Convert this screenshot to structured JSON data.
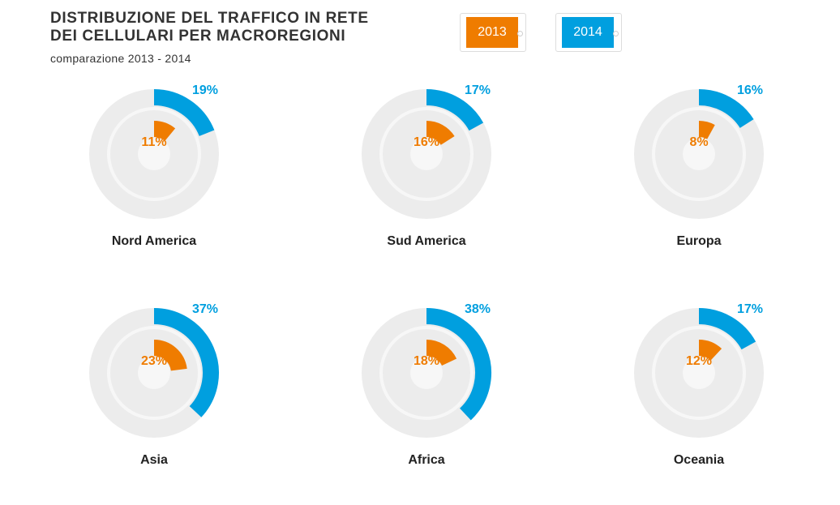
{
  "header": {
    "title_line1": "DISTRIBUZIONE DEL TRAFFICO IN RETE",
    "title_line2": "DEI CELLULARI PER MACROREGIONI",
    "subtitle": "comparazione 2013 - 2014"
  },
  "legend": [
    {
      "label": "2013",
      "color": "#ef7c00"
    },
    {
      "label": "2014",
      "color": "#009fdf"
    }
  ],
  "colors": {
    "y2013": "#ef7c00",
    "y2014": "#009fdf",
    "track": "#ececec",
    "gap": "#f7f7f7"
  },
  "chart_data": {
    "type": "radial-bar",
    "title": "DISTRIBUZIONE DEL TRAFFICO IN RETE DEI CELLULARI PER MACROREGIONI",
    "subtitle": "comparazione 2013 - 2014",
    "unit": "%",
    "series_names": [
      "2013",
      "2014"
    ],
    "regions": [
      {
        "name": "Nord America",
        "v2013": 11,
        "v2014": 19,
        "l2013": "11%",
        "l2014": "19%"
      },
      {
        "name": "Sud America",
        "v2013": 16,
        "v2014": 17,
        "l2013": "16%",
        "l2014": "17%"
      },
      {
        "name": "Europa",
        "v2013": 8,
        "v2014": 16,
        "l2013": "8%",
        "l2014": "16%"
      },
      {
        "name": "Asia",
        "v2013": 23,
        "v2014": 37,
        "l2013": "23%",
        "l2014": "37%"
      },
      {
        "name": "Africa",
        "v2013": 18,
        "v2014": 38,
        "l2013": "18%",
        "l2014": "38%"
      },
      {
        "name": "Oceania",
        "v2013": 12,
        "v2014": 17,
        "l2013": "12%",
        "l2014": "17%"
      }
    ]
  }
}
